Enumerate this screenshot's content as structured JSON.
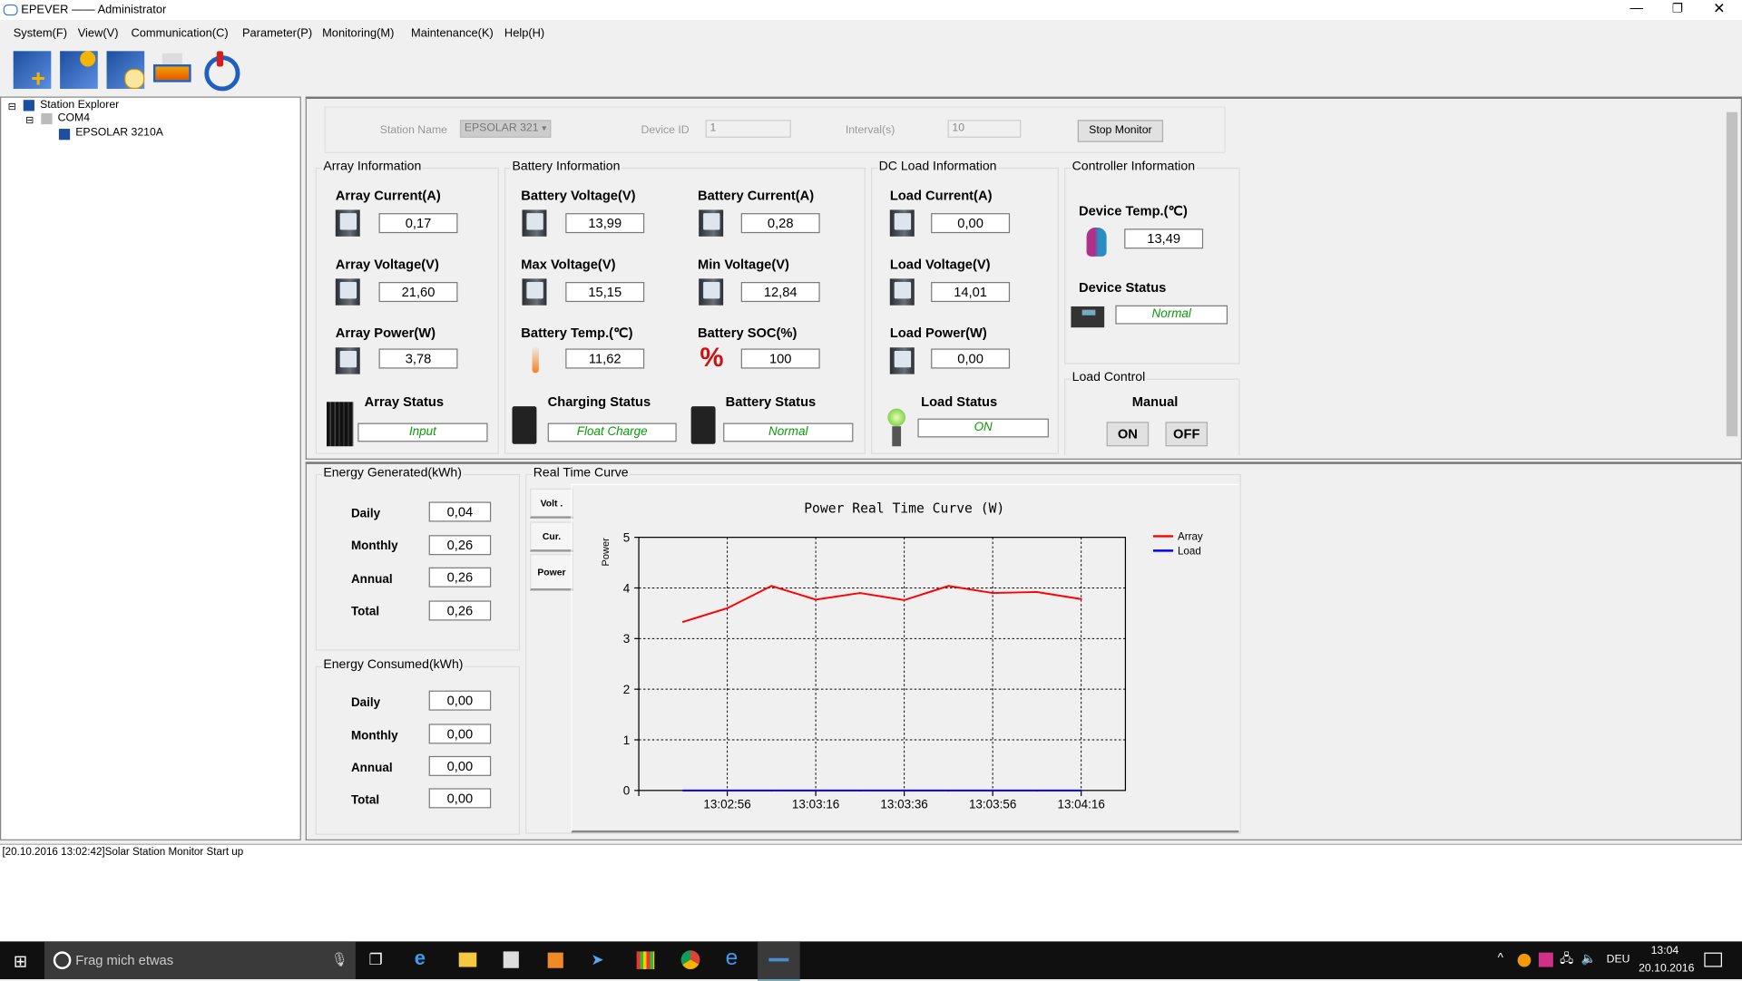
{
  "window": {
    "title": "EPEVER —— Administrator"
  },
  "menu": [
    "System(F)",
    "View(V)",
    "Communication(C)",
    "Parameter(P)",
    "Monitoring(M)",
    "Maintenance(K)",
    "Help(H)"
  ],
  "toolbar": {
    "icons": [
      "add-station-icon",
      "solar-monitor-icon",
      "solar-schedule-icon",
      "print-icon",
      "power-icon"
    ]
  },
  "tree": {
    "root": "Station Explorer",
    "port": "COM4",
    "device": "EPSOLAR 3210A"
  },
  "station": {
    "name_label": "Station Name",
    "name_value": "EPSOLAR 321",
    "device_id_label": "Device ID",
    "device_id_value": "1",
    "interval_label": "Interval(s)",
    "interval_value": "10",
    "stop_button": "Stop Monitor"
  },
  "array": {
    "title": "Array Information",
    "current_label": "Array Current(A)",
    "current": "0,17",
    "voltage_label": "Array Voltage(V)",
    "voltage": "21,60",
    "power_label": "Array Power(W)",
    "power": "3,78",
    "status_label": "Array Status",
    "status": "Input"
  },
  "battery": {
    "title": "Battery Information",
    "voltage_label": "Battery Voltage(V)",
    "voltage": "13,99",
    "current_label": "Battery Current(A)",
    "current": "0,28",
    "max_label": "Max Voltage(V)",
    "max": "15,15",
    "min_label": "Min Voltage(V)",
    "min": "12,84",
    "temp_label": "Battery Temp.(℃)",
    "temp": "11,62",
    "soc_label": "Battery SOC(%)",
    "soc": "100",
    "charging_label": "Charging Status",
    "charging": "Float Charge",
    "status_label": "Battery Status",
    "status": "Normal"
  },
  "load": {
    "title": "DC Load Information",
    "current_label": "Load Current(A)",
    "current": "0,00",
    "voltage_label": "Load Voltage(V)",
    "voltage": "14,01",
    "power_label": "Load Power(W)",
    "power": "0,00",
    "status_label": "Load Status",
    "status": "ON"
  },
  "controller": {
    "title": "Controller Information",
    "temp_label": "Device Temp.(℃)",
    "temp": "13,49",
    "status_label": "Device Status",
    "status": "Normal"
  },
  "load_control": {
    "title": "Load Control",
    "mode": "Manual",
    "on": "ON",
    "off": "OFF"
  },
  "energy_generated": {
    "title": "Energy Generated(kWh)",
    "rows": [
      {
        "label": "Daily",
        "value": "0,04"
      },
      {
        "label": "Monthly",
        "value": "0,26"
      },
      {
        "label": "Annual",
        "value": "0,26"
      },
      {
        "label": "Total",
        "value": "0,26"
      }
    ]
  },
  "energy_consumed": {
    "title": "Energy Consumed(kWh)",
    "rows": [
      {
        "label": "Daily",
        "value": "0,00"
      },
      {
        "label": "Monthly",
        "value": "0,00"
      },
      {
        "label": "Annual",
        "value": "0,00"
      },
      {
        "label": "Total",
        "value": "0,00"
      }
    ]
  },
  "curve": {
    "title": "Real Time Curve",
    "tabs": [
      "Volt .",
      "Cur.",
      "Power"
    ],
    "active_tab": "Power"
  },
  "chart_data": {
    "type": "line",
    "title": "Power Real Time Curve (W)",
    "xlabel": "",
    "ylabel": "Power",
    "ylim": [
      0,
      5
    ],
    "yticks": [
      0,
      1,
      2,
      3,
      4,
      5
    ],
    "xlim": [
      "13:02:36",
      "13:04:26"
    ],
    "xticks": [
      "13:02:56",
      "13:03:16",
      "13:03:36",
      "13:03:56",
      "13:04:16"
    ],
    "grid": true,
    "legend": "top-right",
    "x": [
      "13:02:46",
      "13:02:56",
      "13:03:06",
      "13:03:16",
      "13:03:26",
      "13:03:36",
      "13:03:46",
      "13:03:56",
      "13:04:06",
      "13:04:16"
    ],
    "series": [
      {
        "name": "Array",
        "color": "#ff0000",
        "values": [
          3.33,
          3.6,
          4.04,
          3.77,
          3.9,
          3.76,
          4.04,
          3.9,
          3.92,
          3.78
        ]
      },
      {
        "name": "Load",
        "color": "#0000ff",
        "values": [
          0,
          0,
          0,
          0,
          0,
          0,
          0,
          0,
          0,
          0
        ]
      }
    ]
  },
  "log": {
    "lines": [
      "[20.10.2016 13:02:42]Solar Station Monitor Start up"
    ]
  },
  "taskbar": {
    "search_placeholder": "Frag mich etwas",
    "language": "DEU",
    "time": "13:04",
    "date": "20.10.2016"
  }
}
